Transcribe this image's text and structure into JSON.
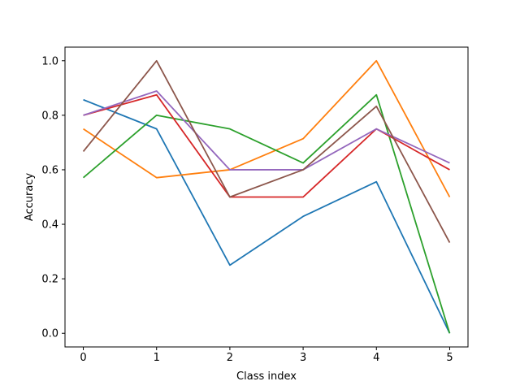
{
  "chart_data": {
    "type": "line",
    "title": "",
    "xlabel": "Class index",
    "ylabel": "Accuracy",
    "x": [
      0,
      1,
      2,
      3,
      4,
      5
    ],
    "xlim": [
      -0.25,
      5.25
    ],
    "ylim": [
      -0.05,
      1.05
    ],
    "xticks": [
      "0",
      "1",
      "2",
      "3",
      "4",
      "5"
    ],
    "yticks": [
      "0.0",
      "0.2",
      "0.4",
      "0.6",
      "0.8",
      "1.0"
    ],
    "grid": false,
    "legend": "none",
    "series": [
      {
        "color": "#1f77b4",
        "values": [
          0.857,
          0.75,
          0.25,
          0.429,
          0.556,
          0.0
        ]
      },
      {
        "color": "#ff7f0e",
        "values": [
          0.75,
          0.571,
          0.6,
          0.714,
          1.0,
          0.5
        ]
      },
      {
        "color": "#2ca02c",
        "values": [
          0.571,
          0.8,
          0.75,
          0.625,
          0.875,
          0.0
        ]
      },
      {
        "color": "#d62728",
        "values": [
          0.8,
          0.875,
          0.5,
          0.5,
          0.75,
          0.6
        ]
      },
      {
        "color": "#9467bd",
        "values": [
          0.8,
          0.889,
          0.6,
          0.6,
          0.75,
          0.625
        ]
      },
      {
        "color": "#8c564b",
        "values": [
          0.667,
          1.0,
          0.5,
          0.6,
          0.833,
          0.333
        ]
      }
    ]
  }
}
